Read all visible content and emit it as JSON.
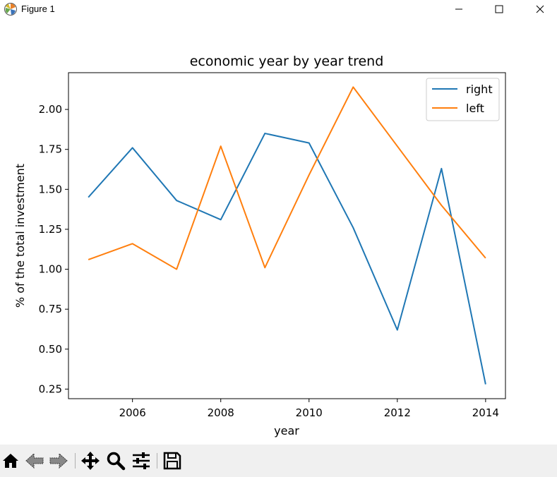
{
  "window": {
    "title": "Figure 1",
    "app_icon": "matplotlib-icon",
    "buttons": [
      "minimize-icon",
      "maximize-icon",
      "close-icon"
    ]
  },
  "toolbar": {
    "tools": [
      "home-icon",
      "back-arrow-icon",
      "forward-arrow-icon",
      "pan-move-icon",
      "zoom-magnifier-icon",
      "configure-subplots-icon",
      "save-disk-icon"
    ]
  },
  "chart_data": {
    "type": "line",
    "title": "economic year by year trend",
    "xlabel": "year",
    "ylabel": "% of the total investment",
    "x": [
      2005,
      2006,
      2007,
      2008,
      2009,
      2010,
      2011,
      2012,
      2013,
      2014
    ],
    "xlim": [
      2004.55,
      2014.45
    ],
    "ylim": [
      0.19,
      2.23
    ],
    "xticks": [
      2006,
      2008,
      2010,
      2012,
      2014
    ],
    "yticks": [
      0.25,
      0.5,
      0.75,
      1.0,
      1.25,
      1.5,
      1.75,
      2.0
    ],
    "ytick_labels": [
      "0.25",
      "0.50",
      "0.75",
      "1.00",
      "1.25",
      "1.50",
      "1.75",
      "2.00"
    ],
    "legend": "top-right",
    "grid": false,
    "series": [
      {
        "name": "right",
        "color": "#1f77b4",
        "values": [
          1.45,
          1.76,
          1.43,
          1.31,
          1.85,
          1.79,
          1.26,
          0.62,
          1.63,
          0.28
        ]
      },
      {
        "name": "left",
        "color": "#ff7f0e",
        "values": [
          1.06,
          1.16,
          1.0,
          1.77,
          1.01,
          1.59,
          2.14,
          1.77,
          1.4,
          1.07
        ]
      }
    ]
  }
}
